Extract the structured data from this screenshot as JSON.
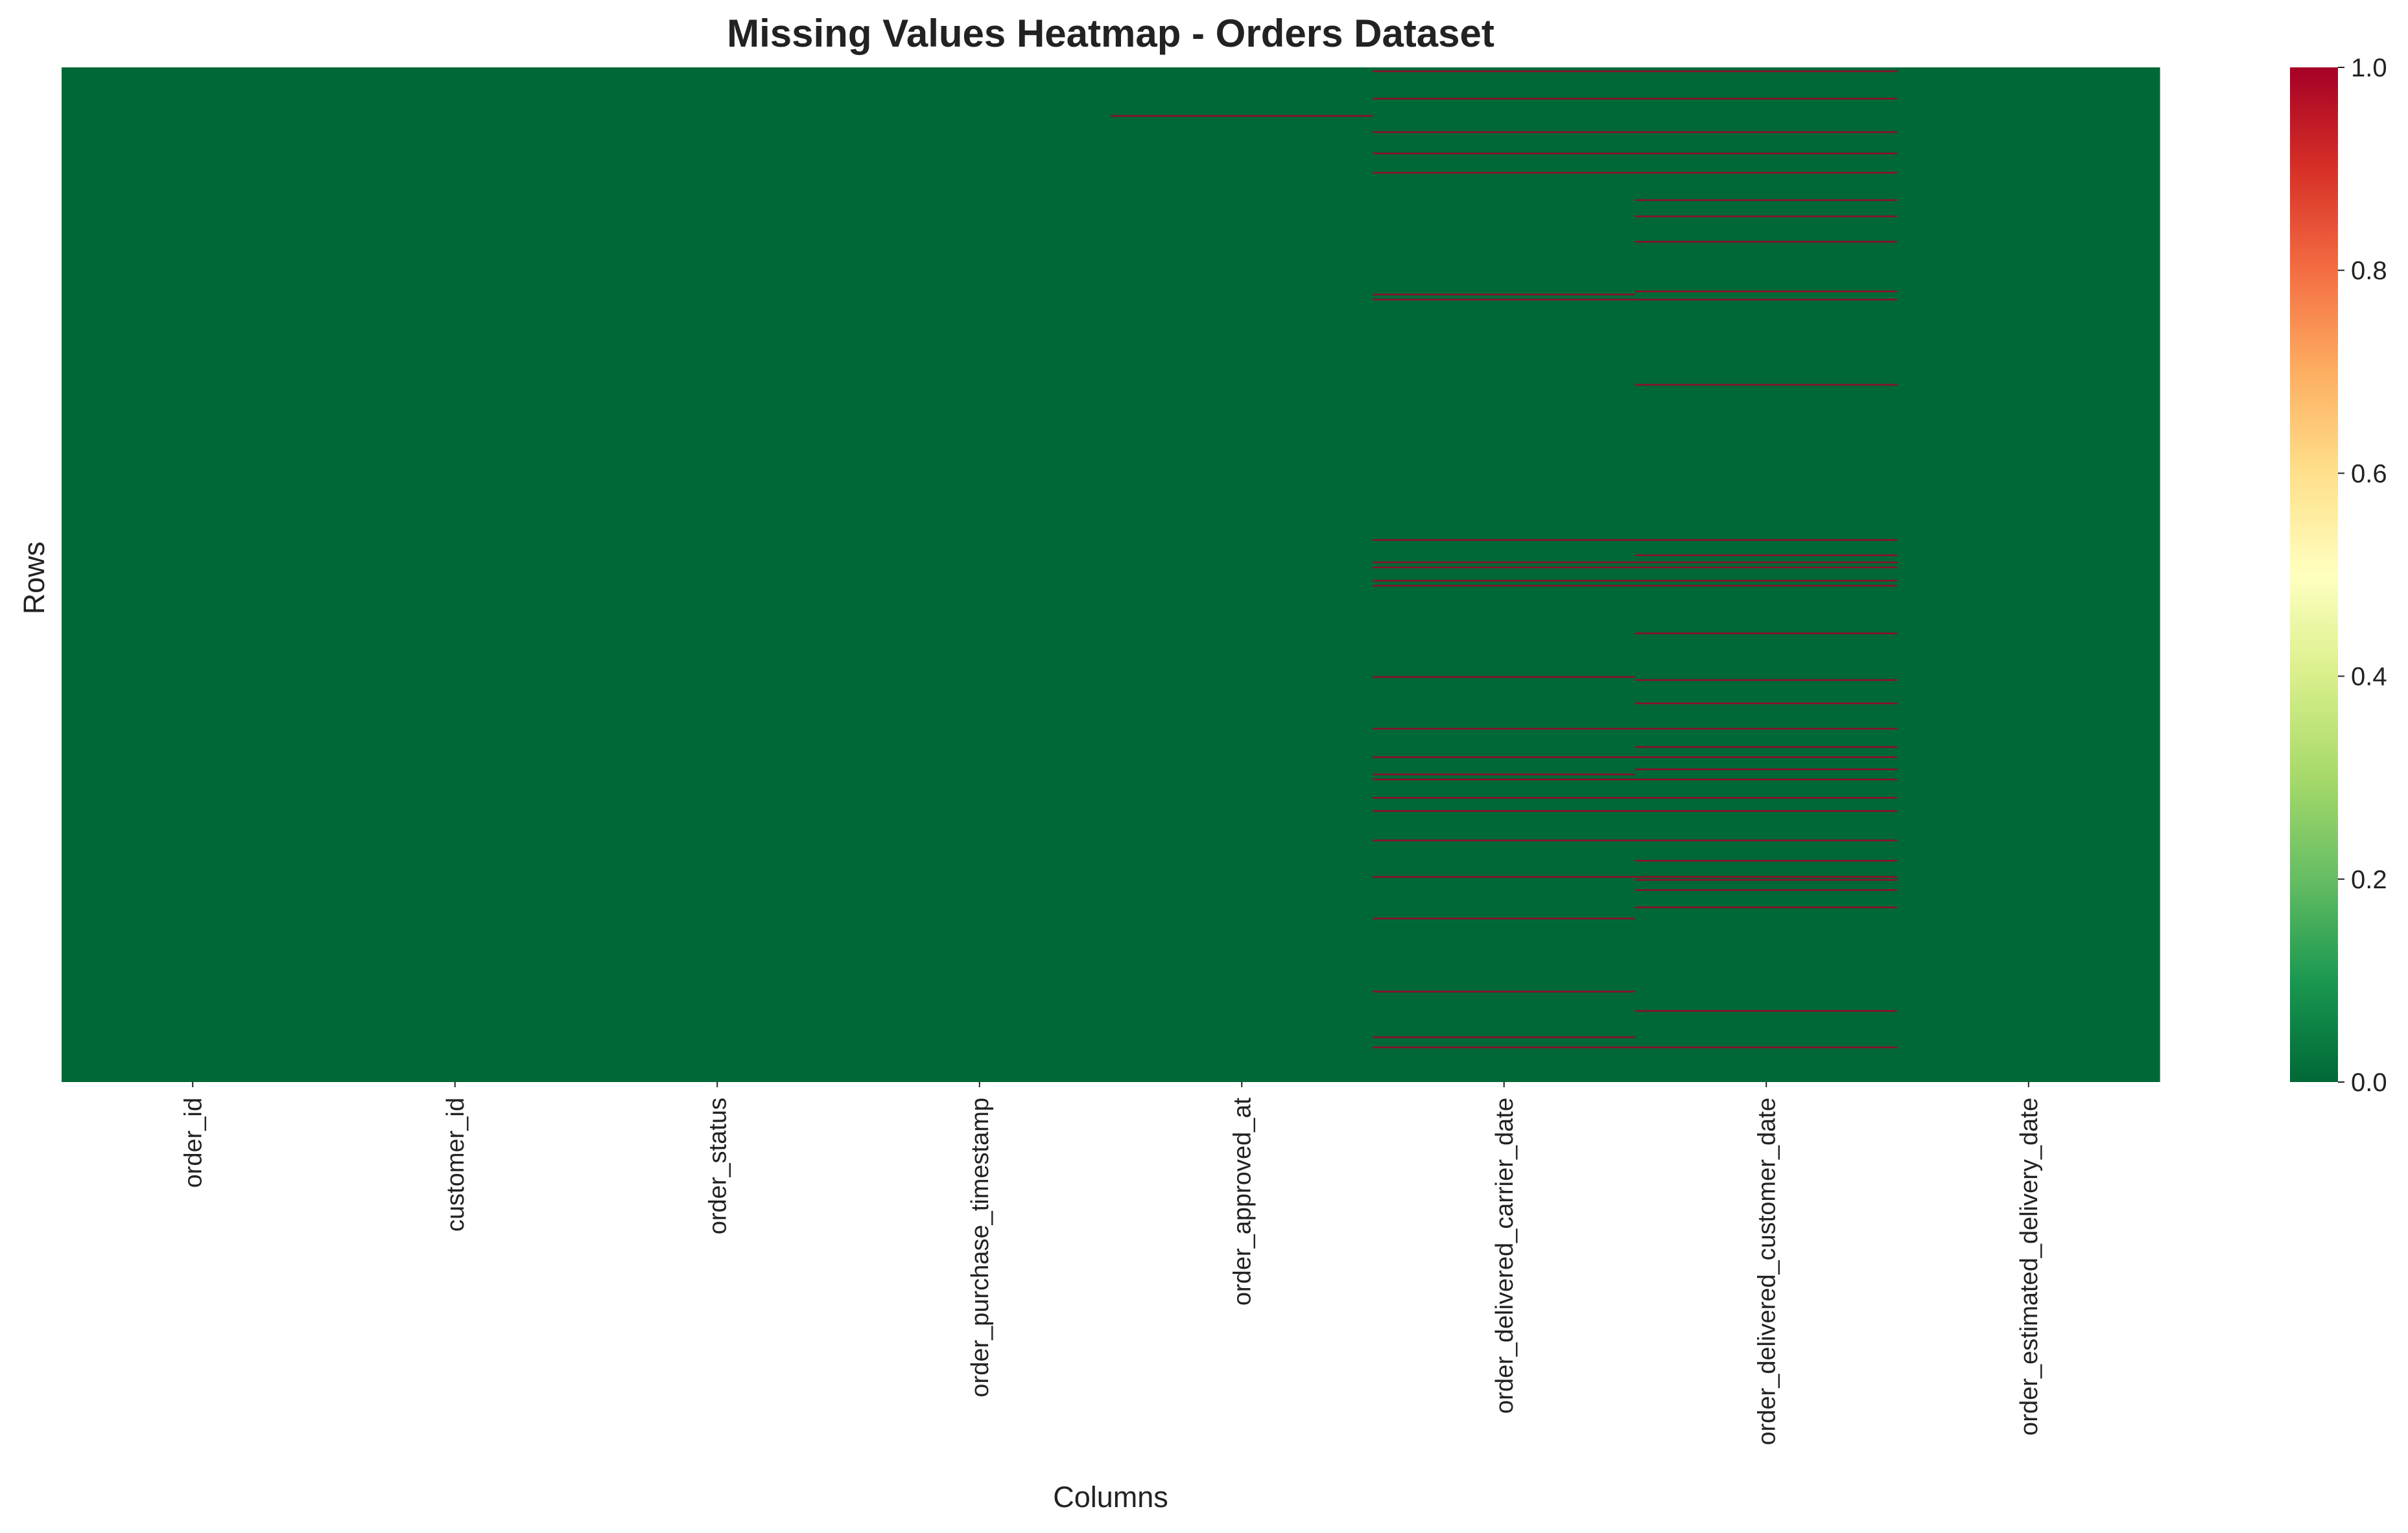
{
  "chart_data": {
    "type": "heatmap",
    "title": "Missing Values Heatmap - Orders Dataset",
    "xlabel": "Columns",
    "ylabel": "Rows",
    "columns": [
      "order_id",
      "customer_id",
      "order_status",
      "order_purchase_timestamp",
      "order_approved_at",
      "order_delivered_carrier_date",
      "order_delivered_customer_date",
      "order_estimated_delivery_date"
    ],
    "row_count": 1000,
    "value_range": [
      0.0,
      1.0
    ],
    "colormap": "RdYlGn_r",
    "colorbar_ticks": [
      "0.0",
      "0.2",
      "0.4",
      "0.6",
      "0.8",
      "1.0"
    ],
    "colorbar_tick_values": [
      0.0,
      0.2,
      0.4,
      0.6,
      0.8,
      1.0
    ],
    "missing_rows": {
      "order_id": [],
      "customer_id": [],
      "order_status": [],
      "order_purchase_timestamp": [],
      "order_approved_at": [
        47
      ],
      "order_delivered_carrier_date": [
        3,
        30,
        63,
        84,
        103,
        223,
        228,
        465,
        487,
        492,
        505,
        510,
        600,
        651,
        679,
        696,
        701,
        719,
        732,
        761,
        797,
        838,
        910,
        955,
        965
      ],
      "order_delivered_customer_date": [
        3,
        30,
        63,
        84,
        103,
        130,
        146,
        171,
        220,
        228,
        312,
        465,
        480,
        487,
        492,
        505,
        510,
        557,
        603,
        626,
        651,
        669,
        679,
        691,
        701,
        719,
        732,
        761,
        781,
        797,
        800,
        810,
        827,
        929,
        965
      ]
    },
    "colors": {
      "present": "#006837",
      "missing": "#a50026",
      "cmap_stops": [
        "#006837",
        "#1a9850",
        "#66bd63",
        "#a6d96a",
        "#d9ef8b",
        "#ffffbf",
        "#fee08b",
        "#fdae61",
        "#f46d43",
        "#d73027",
        "#a50026"
      ]
    }
  }
}
